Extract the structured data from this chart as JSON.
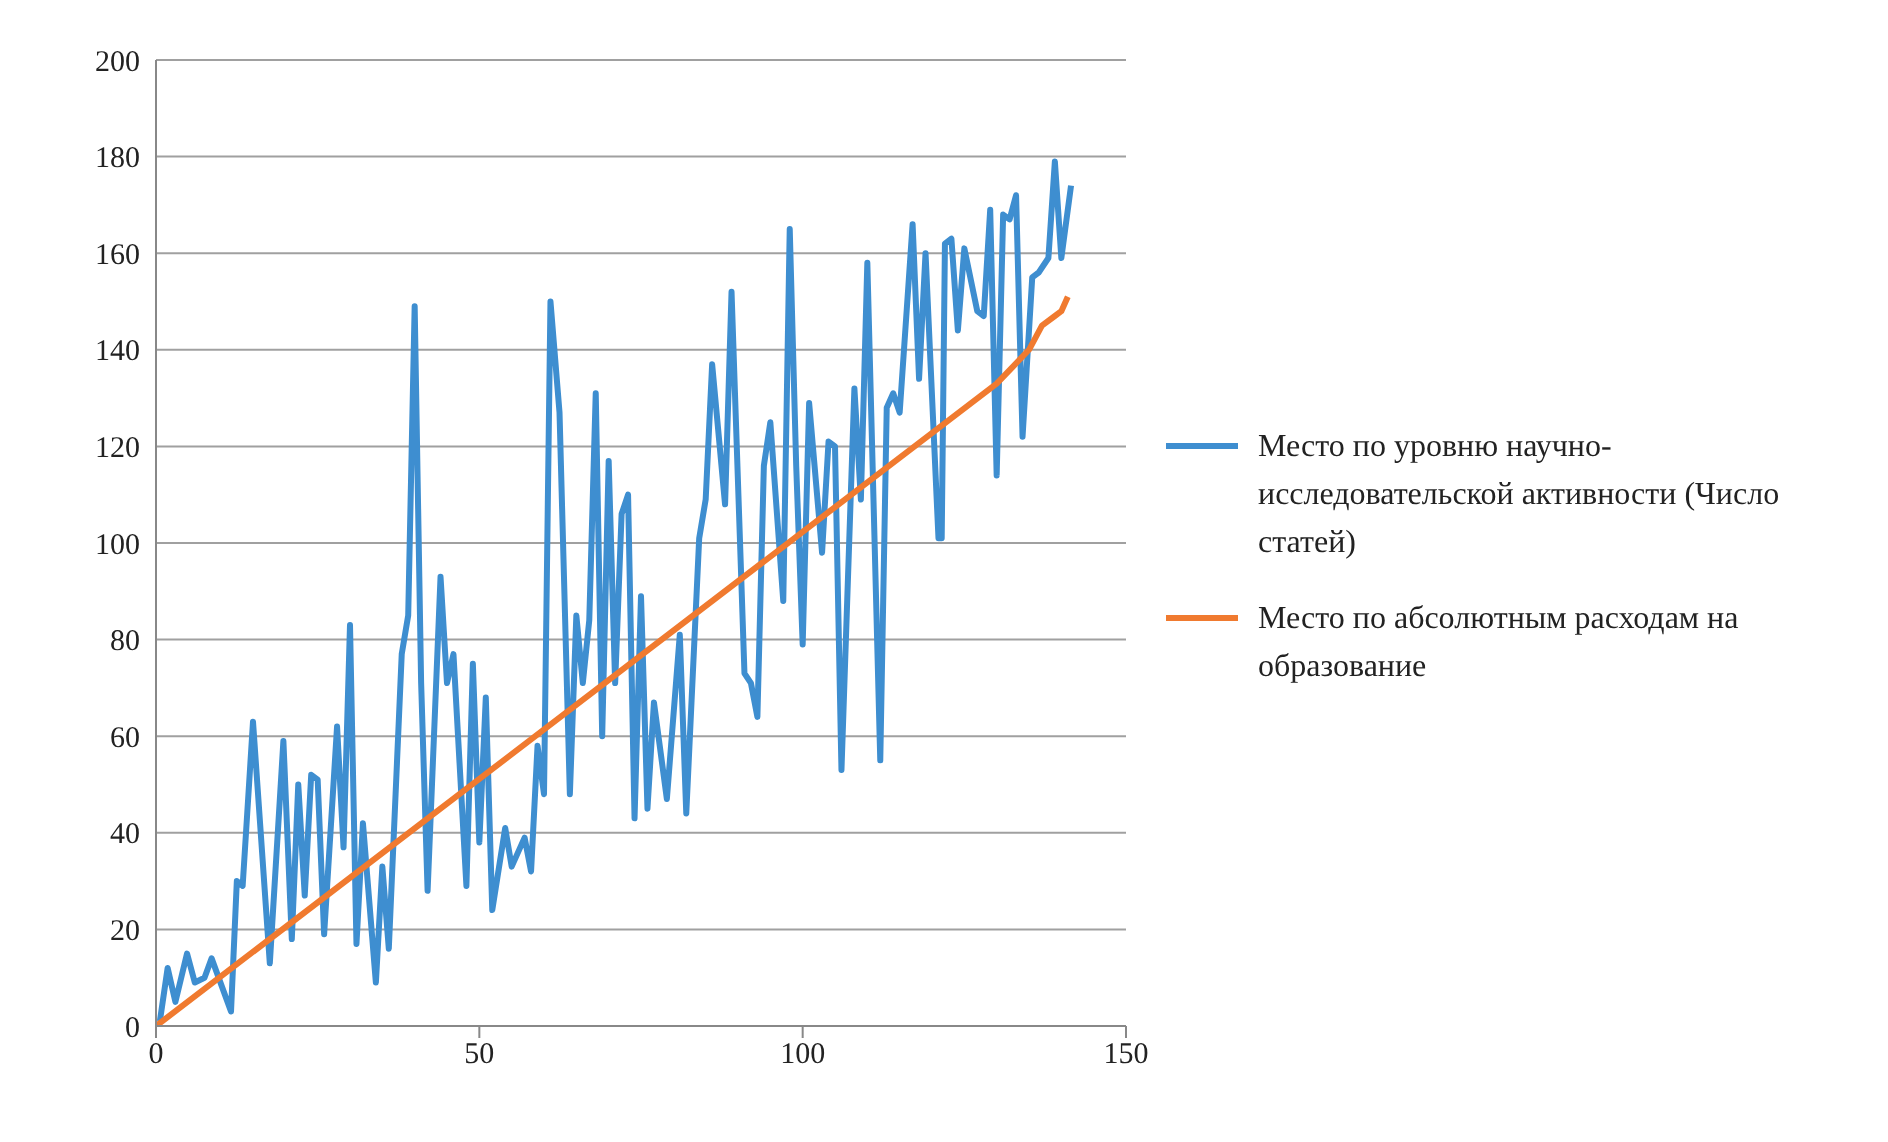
{
  "chart_data": {
    "type": "line",
    "xlim": [
      0,
      150
    ],
    "xticks": [
      0,
      50,
      100,
      150
    ],
    "ylim": [
      0,
      200
    ],
    "yticks": [
      0,
      20,
      40,
      60,
      80,
      100,
      120,
      140,
      160,
      180,
      200
    ],
    "grid": "y",
    "legend": "right",
    "marker": "none",
    "line_style": "solid",
    "series": [
      {
        "name": "Место по уровню научно-исследовательской активности (Число статей)",
        "color": "#3e8ed0",
        "x": [
          0.6,
          1.8,
          3,
          4.8,
          6,
          7.5,
          8.6,
          11.6,
          12.5,
          13.4,
          15,
          17.6,
          19.7,
          21,
          22,
          23,
          24,
          25,
          26,
          28,
          29,
          30,
          31,
          32,
          34,
          35,
          36,
          38,
          39,
          40,
          41,
          42,
          44,
          45,
          46,
          48,
          49,
          50,
          51,
          52,
          54,
          55,
          57,
          58,
          59,
          60,
          61,
          62.4,
          64,
          65,
          66,
          67,
          68,
          69,
          70,
          71,
          72,
          73,
          74,
          75,
          76,
          77,
          79,
          81,
          82,
          84,
          85,
          86,
          88,
          89,
          91,
          92,
          93,
          94,
          95,
          97,
          98,
          99,
          100,
          101,
          103,
          104,
          105,
          106,
          108,
          109,
          110,
          112,
          113,
          114,
          115,
          117,
          118,
          119,
          121,
          121.5,
          122,
          123,
          124,
          125,
          127,
          128,
          129,
          130,
          131,
          132,
          133,
          134,
          135.5,
          136.5,
          138,
          139,
          140,
          141.5
        ],
        "values": [
          1,
          12,
          5,
          15,
          9,
          10,
          14,
          3,
          30,
          29,
          63,
          13,
          59,
          18,
          50,
          27,
          52,
          51,
          19,
          62,
          37,
          83,
          17,
          42,
          9,
          33,
          16,
          77,
          85,
          149,
          71,
          28,
          93,
          71,
          77,
          29,
          75,
          38,
          68,
          24,
          41,
          33,
          39,
          32,
          58,
          48,
          150,
          127,
          48,
          85,
          71,
          84,
          131,
          60,
          117,
          71,
          106,
          110,
          43,
          89,
          45,
          67,
          47,
          81,
          44,
          101,
          109,
          137,
          108,
          152,
          73,
          71,
          64,
          116,
          125,
          88,
          165,
          116,
          79,
          129,
          98,
          121,
          120,
          53,
          132,
          109,
          158,
          55,
          128,
          131,
          127,
          166,
          134,
          160,
          101,
          101,
          162,
          163,
          144,
          161,
          148,
          147,
          169,
          114,
          168,
          167,
          172,
          122,
          155,
          156,
          159,
          179,
          159,
          174
        ]
      },
      {
        "name": "Место по абсолютным расходам на образование",
        "color": "#f07a2f",
        "x": [
          0,
          130,
          135,
          137,
          139,
          140,
          141
        ],
        "values": [
          0,
          133,
          140,
          145,
          147,
          148,
          151
        ]
      }
    ]
  }
}
